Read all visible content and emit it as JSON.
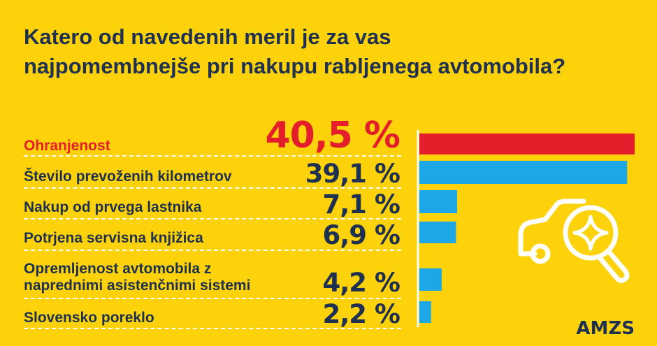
{
  "title_lines": [
    "Katero od navedenih meril je za vas",
    "najpomembnejše pri nakupu rabljenega avtomobila?"
  ],
  "logo": "AMZS",
  "colors": {
    "background": "#FDD20A",
    "text": "#1E3150",
    "highlight": "#E41E2B",
    "bar": "#1EA7E6",
    "separator": "#FFFFFF"
  },
  "chart_data": {
    "type": "bar",
    "orientation": "horizontal",
    "title": "Katero od navedenih meril je za vas najpomembnejše pri nakupu rabljenega avtomobila?",
    "unit": "%",
    "xlim": [
      0,
      40.5
    ],
    "categories": [
      [
        "Ohranjenost"
      ],
      [
        "Število prevoženih kilometrov"
      ],
      [
        "Nakup od prvega lastnika"
      ],
      [
        "Potrjena servisna knjižica"
      ],
      [
        "Opremljenost avtomobila z",
        "naprednimi asistenčnimi sistemi"
      ],
      [
        "Slovensko poreklo"
      ]
    ],
    "values": [
      40.5,
      39.1,
      7.1,
      6.9,
      4.2,
      2.2
    ],
    "value_labels": [
      "40,5 %",
      "39,1 %",
      "7,1 %",
      "6,9 %",
      "4,2 %",
      "2,2 %"
    ],
    "highlight_index": 0
  }
}
